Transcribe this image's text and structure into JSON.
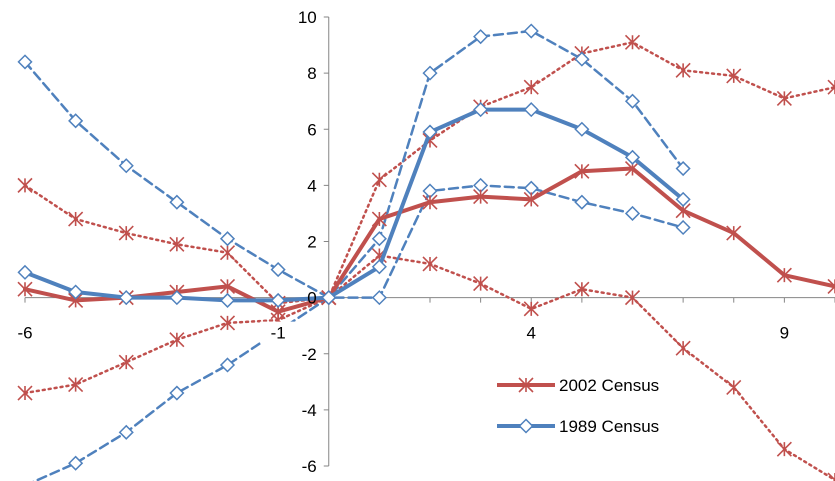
{
  "chart_data": {
    "type": "line",
    "title": "",
    "xlabel": "",
    "ylabel": "",
    "xlim": [
      -6,
      10
    ],
    "ylim": [
      -6,
      10
    ],
    "x_ticks": [
      "-6",
      "-1",
      "4",
      "9"
    ],
    "x_tick_values": [
      -6,
      -1,
      4,
      9
    ],
    "y_ticks": [
      "-6",
      "-4",
      "-2",
      "0",
      "2",
      "4",
      "6",
      "8",
      "10"
    ],
    "y_tick_values": [
      -6,
      -4,
      -2,
      0,
      2,
      4,
      6,
      8,
      10
    ],
    "grid": false,
    "legend_position": "bottom-right",
    "series": [
      {
        "name": "2002 Census",
        "role": "estimate",
        "color": "#c0504d",
        "line": "solid",
        "marker": "asterisk",
        "x": [
          -6,
          -5,
          -4,
          -3,
          -2,
          -1,
          0,
          1,
          2,
          3,
          4,
          5,
          6,
          7,
          8,
          9,
          10
        ],
        "y": [
          0.3,
          -0.1,
          0.0,
          0.2,
          0.4,
          -0.5,
          0.0,
          2.8,
          3.4,
          3.6,
          3.5,
          4.5,
          4.6,
          3.1,
          2.3,
          0.8,
          0.4
        ]
      },
      {
        "role": "upper-bound",
        "color": "#c0504d",
        "line": "dotted",
        "marker": "asterisk",
        "x": [
          -6,
          -5,
          -4,
          -3,
          -2,
          -1,
          0,
          1,
          2,
          3,
          4,
          5,
          6,
          7,
          8,
          9,
          10
        ],
        "y": [
          4.0,
          2.8,
          2.3,
          1.9,
          1.6,
          -0.2,
          0.0,
          4.2,
          5.6,
          6.8,
          7.5,
          8.7,
          9.1,
          8.1,
          7.9,
          7.1,
          7.5
        ]
      },
      {
        "role": "lower-bound",
        "color": "#c0504d",
        "line": "dotted",
        "marker": "asterisk",
        "x": [
          -6,
          -5,
          -4,
          -3,
          -2,
          -1,
          0,
          1,
          2,
          3,
          4,
          5,
          6,
          7,
          8,
          9,
          10
        ],
        "y": [
          -3.4,
          -3.1,
          -2.3,
          -1.5,
          -0.9,
          -0.8,
          0.0,
          1.5,
          1.2,
          0.5,
          -0.4,
          0.3,
          0.0,
          -1.8,
          -3.2,
          -5.4,
          -6.5
        ]
      },
      {
        "name": "1989 Census",
        "role": "estimate",
        "color": "#4f81bd",
        "line": "solid",
        "marker": "diamond",
        "x": [
          -6,
          -5,
          -4,
          -3,
          -2,
          -1,
          0,
          1,
          2,
          3,
          4,
          5,
          6,
          7
        ],
        "y": [
          0.9,
          0.2,
          0.0,
          0.0,
          -0.1,
          -0.1,
          0.0,
          1.1,
          5.9,
          6.7,
          6.7,
          6.0,
          5.0,
          3.5
        ]
      },
      {
        "role": "upper-bound",
        "color": "#4f81bd",
        "line": "dashed",
        "marker": "diamond",
        "x": [
          -6,
          -5,
          -4,
          -3,
          -2,
          -1,
          0,
          1,
          2,
          3,
          4,
          5,
          6,
          7
        ],
        "y": [
          8.4,
          6.3,
          4.7,
          3.4,
          2.1,
          1.0,
          0.0,
          2.1,
          8.0,
          9.3,
          9.5,
          8.5,
          7.0,
          4.6
        ]
      },
      {
        "role": "lower-bound",
        "color": "#4f81bd",
        "line": "dashed",
        "marker": "diamond",
        "x": [
          -6,
          -5,
          -4,
          -3,
          -2,
          -1,
          0,
          1,
          2,
          3,
          4,
          5,
          6,
          7
        ],
        "y": [
          -6.7,
          -5.9,
          -4.8,
          -3.4,
          -2.4,
          -1.2,
          0.0,
          0.0,
          3.8,
          4.0,
          3.9,
          3.4,
          3.0,
          2.5
        ]
      }
    ]
  },
  "legend": {
    "items": [
      {
        "label": "2002 Census",
        "color": "#c0504d",
        "marker": "asterisk"
      },
      {
        "label": "1989 Census",
        "color": "#4f81bd",
        "marker": "diamond"
      }
    ]
  }
}
